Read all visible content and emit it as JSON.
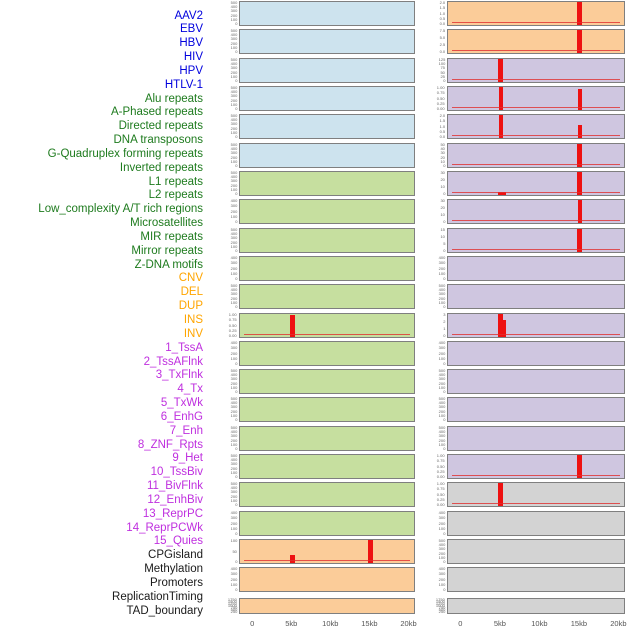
{
  "colors": {
    "spike_red": "#ee1111",
    "baseline_red": "#e03030",
    "label_groups": {
      "virus": "#0000dd",
      "repeat": "#1e7b1e",
      "sv": "#ffa500",
      "chromatin": "#bf2fdf",
      "other": "#1a1a1a"
    },
    "panel_groups": {
      "virus": "#cde3ee",
      "repeat": "#c6df9f",
      "sv": "#fbcc99",
      "chromatin": "#cfc6e0",
      "other": "#d3d3d3"
    }
  },
  "labels": [
    {
      "text": "AAV2",
      "group": "virus"
    },
    {
      "text": "EBV",
      "group": "virus"
    },
    {
      "text": "HBV",
      "group": "virus"
    },
    {
      "text": "HIV",
      "group": "virus"
    },
    {
      "text": "HPV",
      "group": "virus"
    },
    {
      "text": "HTLV-1",
      "group": "virus"
    },
    {
      "text": "Alu repeats",
      "group": "repeat"
    },
    {
      "text": "A-Phased repeats",
      "group": "repeat"
    },
    {
      "text": "Directed repeats",
      "group": "repeat"
    },
    {
      "text": "DNA transposons",
      "group": "repeat"
    },
    {
      "text": "G-Quadruplex forming repeats",
      "group": "repeat"
    },
    {
      "text": "Inverted repeats",
      "group": "repeat"
    },
    {
      "text": "L1 repeats",
      "group": "repeat"
    },
    {
      "text": "L2 repeats",
      "group": "repeat"
    },
    {
      "text": "Low_complexity A/T rich regions",
      "group": "repeat"
    },
    {
      "text": "Microsatellites",
      "group": "repeat"
    },
    {
      "text": "MIR repeats",
      "group": "repeat"
    },
    {
      "text": "Mirror repeats",
      "group": "repeat"
    },
    {
      "text": "Z-DNA motifs",
      "group": "repeat"
    },
    {
      "text": "CNV",
      "group": "sv"
    },
    {
      "text": "DEL",
      "group": "sv"
    },
    {
      "text": "DUP",
      "group": "sv"
    },
    {
      "text": "INS",
      "group": "sv"
    },
    {
      "text": "INV",
      "group": "sv"
    },
    {
      "text": "1_TssA",
      "group": "chromatin"
    },
    {
      "text": "2_TssAFlnk",
      "group": "chromatin"
    },
    {
      "text": "3_TxFlnk",
      "group": "chromatin"
    },
    {
      "text": "4_Tx",
      "group": "chromatin"
    },
    {
      "text": "5_TxWk",
      "group": "chromatin"
    },
    {
      "text": "6_EnhG",
      "group": "chromatin"
    },
    {
      "text": "7_Enh",
      "group": "chromatin"
    },
    {
      "text": "8_ZNF_Rpts",
      "group": "chromatin"
    },
    {
      "text": "9_Het",
      "group": "chromatin"
    },
    {
      "text": "10_TssBiv",
      "group": "chromatin"
    },
    {
      "text": "11_BivFlnk",
      "group": "chromatin"
    },
    {
      "text": "12_EnhBiv",
      "group": "chromatin"
    },
    {
      "text": "13_ReprPC",
      "group": "chromatin"
    },
    {
      "text": "14_ReprPCWk",
      "group": "chromatin"
    },
    {
      "text": "15_Quies",
      "group": "chromatin"
    },
    {
      "text": "CPGisland",
      "group": "other"
    },
    {
      "text": "Methylation",
      "group": "other"
    },
    {
      "text": "Promoters",
      "group": "other"
    },
    {
      "text": "ReplicationTiming",
      "group": "other"
    },
    {
      "text": "TAD_boundary",
      "group": "other"
    }
  ],
  "x_axis": {
    "ticks": [
      "0",
      "5kb",
      "10kb",
      "15kb",
      "20kb"
    ],
    "range_kb": [
      0,
      20
    ]
  },
  "chart_data": {
    "type": "area",
    "layout": "44 mini signal panels arranged 22 rows x 2 columns, shared x-axis 0-20kb, red spikes mark signal peaks",
    "panels": [
      {
        "name": "AAV2",
        "col": "left",
        "row": 1,
        "group": "virus",
        "yticks": [
          "500",
          "400",
          "300",
          "200",
          "100",
          "0"
        ],
        "spikes": [],
        "baseline": false
      },
      {
        "name": "EBV",
        "col": "left",
        "row": 2,
        "group": "virus",
        "yticks": [
          "500",
          "400",
          "300",
          "200",
          "100",
          "0"
        ],
        "spikes": [],
        "baseline": false
      },
      {
        "name": "HBV",
        "col": "left",
        "row": 3,
        "group": "virus",
        "yticks": [
          "500",
          "400",
          "300",
          "200",
          "100",
          "0"
        ],
        "spikes": [],
        "baseline": false
      },
      {
        "name": "HIV",
        "col": "left",
        "row": 4,
        "group": "virus",
        "yticks": [
          "500",
          "400",
          "300",
          "200",
          "100",
          "0"
        ],
        "spikes": [],
        "baseline": false
      },
      {
        "name": "HPV",
        "col": "left",
        "row": 5,
        "group": "virus",
        "yticks": [
          "500",
          "400",
          "300",
          "200",
          "100",
          "0"
        ],
        "spikes": [],
        "baseline": false
      },
      {
        "name": "HTLV-1",
        "col": "left",
        "row": 6,
        "group": "virus",
        "yticks": [
          "500",
          "400",
          "300",
          "200",
          "100",
          "0"
        ],
        "spikes": [],
        "baseline": false
      },
      {
        "name": "Alu repeats",
        "col": "left",
        "row": 7,
        "group": "repeat",
        "yticks": [
          "500",
          "400",
          "300",
          "200",
          "100",
          "0"
        ],
        "spikes": [],
        "baseline": false
      },
      {
        "name": "A-Phased repeats",
        "col": "left",
        "row": 8,
        "group": "repeat",
        "yticks": [
          "400",
          "300",
          "200",
          "100",
          "0"
        ],
        "spikes": [],
        "baseline": false
      },
      {
        "name": "Directed repeats",
        "col": "left",
        "row": 9,
        "group": "repeat",
        "yticks": [
          "500",
          "400",
          "300",
          "200",
          "100",
          "0"
        ],
        "spikes": [],
        "baseline": false
      },
      {
        "name": "DNA transposons",
        "col": "left",
        "row": 10,
        "group": "repeat",
        "yticks": [
          "400",
          "300",
          "200",
          "100",
          "0"
        ],
        "spikes": [],
        "baseline": false
      },
      {
        "name": "G-Quadruplex forming repeats",
        "col": "left",
        "row": 11,
        "group": "repeat",
        "yticks": [
          "500",
          "400",
          "300",
          "200",
          "100",
          "0"
        ],
        "spikes": [],
        "baseline": false
      },
      {
        "name": "Inverted repeats",
        "col": "left",
        "row": 12,
        "group": "repeat",
        "yticks": [
          "1.00",
          "0.75",
          "0.50",
          "0.25",
          "0.00"
        ],
        "spikes": [
          {
            "kb": 5,
            "h": 0.95,
            "w": 5
          }
        ],
        "baseline": true
      },
      {
        "name": "L1 repeats",
        "col": "left",
        "row": 13,
        "group": "repeat",
        "yticks": [
          "400",
          "300",
          "200",
          "100",
          "0"
        ],
        "spikes": [],
        "baseline": false
      },
      {
        "name": "L2 repeats",
        "col": "left",
        "row": 14,
        "group": "repeat",
        "yticks": [
          "500",
          "400",
          "300",
          "200",
          "100",
          "0"
        ],
        "spikes": [],
        "baseline": false
      },
      {
        "name": "Low_complexity A/T rich regions",
        "col": "left",
        "row": 15,
        "group": "repeat",
        "yticks": [
          "500",
          "400",
          "300",
          "200",
          "100",
          "0"
        ],
        "spikes": [],
        "baseline": false
      },
      {
        "name": "Microsatellites",
        "col": "left",
        "row": 16,
        "group": "repeat",
        "yticks": [
          "500",
          "400",
          "300",
          "200",
          "100",
          "0"
        ],
        "spikes": [],
        "baseline": false
      },
      {
        "name": "MIR repeats",
        "col": "left",
        "row": 17,
        "group": "repeat",
        "yticks": [
          "500",
          "400",
          "300",
          "200",
          "100",
          "0"
        ],
        "spikes": [],
        "baseline": false
      },
      {
        "name": "Mirror repeats",
        "col": "left",
        "row": 18,
        "group": "repeat",
        "yticks": [
          "500",
          "400",
          "300",
          "200",
          "100",
          "0"
        ],
        "spikes": [],
        "baseline": false
      },
      {
        "name": "Z-DNA motifs",
        "col": "left",
        "row": 19,
        "group": "repeat",
        "yticks": [
          "400",
          "300",
          "200",
          "100",
          "0"
        ],
        "spikes": [],
        "baseline": false
      },
      {
        "name": "CNV",
        "col": "left",
        "row": 20,
        "group": "sv",
        "yticks": [
          "100",
          "50",
          "0"
        ],
        "spikes": [
          {
            "kb": 5,
            "h": 0.33,
            "w": 5
          },
          {
            "kb": 15,
            "h": 1.0,
            "w": 5
          }
        ],
        "baseline": true
      },
      {
        "name": "DEL",
        "col": "left",
        "row": 21,
        "group": "sv",
        "yticks": [
          "400",
          "300",
          "200",
          "100",
          "0"
        ],
        "spikes": [],
        "baseline": false
      },
      {
        "name": "DUP",
        "col": "left",
        "row": 22,
        "group": "sv",
        "yticks": [
          "1750",
          "1500",
          "1250",
          "1000",
          "750",
          "500",
          "250"
        ],
        "spikes": [],
        "baseline": false
      },
      {
        "name": "INS",
        "col": "right",
        "row": 1,
        "group": "sv",
        "yticks": [
          "2.0",
          "1.5",
          "1.0",
          "0.5",
          "0.0"
        ],
        "spikes": [
          {
            "kb": 15,
            "h": 1.0,
            "w": 5
          }
        ],
        "baseline": true
      },
      {
        "name": "INV",
        "col": "right",
        "row": 2,
        "group": "sv",
        "yticks": [
          "7.5",
          "5.0",
          "2.5",
          "0.0"
        ],
        "spikes": [
          {
            "kb": 15,
            "h": 1.0,
            "w": 5
          }
        ],
        "baseline": true
      },
      {
        "name": "1_TssA",
        "col": "right",
        "row": 3,
        "group": "chromatin",
        "yticks": [
          "125",
          "100",
          "75",
          "50",
          "25",
          "0"
        ],
        "spikes": [
          {
            "kb": 5,
            "h": 1.0,
            "w": 5
          }
        ],
        "baseline": true
      },
      {
        "name": "2_TssAFlnk",
        "col": "right",
        "row": 4,
        "group": "chromatin",
        "yticks": [
          "1.00",
          "0.75",
          "0.50",
          "0.25",
          "0.00"
        ],
        "spikes": [
          {
            "kb": 5,
            "h": 1.0,
            "w": 4
          },
          {
            "kb": 15,
            "h": 0.93,
            "w": 4
          }
        ],
        "baseline": true
      },
      {
        "name": "3_TxFlnk",
        "col": "right",
        "row": 5,
        "group": "chromatin",
        "yticks": [
          "2.0",
          "1.5",
          "1.0",
          "0.5",
          "0.0"
        ],
        "spikes": [
          {
            "kb": 5,
            "h": 1.0,
            "w": 4
          },
          {
            "kb": 15,
            "h": 0.55,
            "w": 4
          }
        ],
        "baseline": true
      },
      {
        "name": "4_Tx",
        "col": "right",
        "row": 6,
        "group": "chromatin",
        "yticks": [
          "50",
          "40",
          "30",
          "20",
          "10",
          "0"
        ],
        "spikes": [
          {
            "kb": 15,
            "h": 1.0,
            "w": 5
          }
        ],
        "baseline": true
      },
      {
        "name": "5_TxWk",
        "col": "right",
        "row": 7,
        "group": "chromatin",
        "yticks": [
          "30",
          "20",
          "10",
          "0"
        ],
        "spikes": [
          {
            "kb": 5.2,
            "h": 0.12,
            "w": 8
          },
          {
            "kb": 15,
            "h": 1.0,
            "w": 5
          }
        ],
        "baseline": true
      },
      {
        "name": "6_EnhG",
        "col": "right",
        "row": 8,
        "group": "chromatin",
        "yticks": [
          "30",
          "20",
          "10",
          "0"
        ],
        "spikes": [
          {
            "kb": 15,
            "h": 1.0,
            "w": 4
          }
        ],
        "baseline": true
      },
      {
        "name": "7_Enh",
        "col": "right",
        "row": 9,
        "group": "chromatin",
        "yticks": [
          "15",
          "10",
          "5",
          "0"
        ],
        "spikes": [
          {
            "kb": 15,
            "h": 1.0,
            "w": 5
          }
        ],
        "baseline": true
      },
      {
        "name": "8_ZNF_Rpts",
        "col": "right",
        "row": 10,
        "group": "chromatin",
        "yticks": [
          "400",
          "300",
          "200",
          "100",
          "0"
        ],
        "spikes": [],
        "baseline": false
      },
      {
        "name": "9_Het",
        "col": "right",
        "row": 11,
        "group": "chromatin",
        "yticks": [
          "500",
          "400",
          "300",
          "200",
          "100",
          "0"
        ],
        "spikes": [],
        "baseline": false
      },
      {
        "name": "10_TssBiv",
        "col": "right",
        "row": 12,
        "group": "chromatin",
        "yticks": [
          "3",
          "2",
          "1",
          "0"
        ],
        "spikes": [
          {
            "kb": 5,
            "h": 1.0,
            "w": 5
          },
          {
            "kb": 5.45,
            "h": 0.72,
            "w": 3
          }
        ],
        "baseline": true
      },
      {
        "name": "11_BivFlnk",
        "col": "right",
        "row": 13,
        "group": "chromatin",
        "yticks": [
          "400",
          "300",
          "200",
          "100",
          "0"
        ],
        "spikes": [],
        "baseline": false
      },
      {
        "name": "12_EnhBiv",
        "col": "right",
        "row": 14,
        "group": "chromatin",
        "yticks": [
          "500",
          "400",
          "300",
          "200",
          "100",
          "0"
        ],
        "spikes": [],
        "baseline": false
      },
      {
        "name": "13_ReprPC",
        "col": "right",
        "row": 15,
        "group": "chromatin",
        "yticks": [
          "500",
          "400",
          "300",
          "200",
          "100",
          "0"
        ],
        "spikes": [],
        "baseline": false
      },
      {
        "name": "14_ReprPCWk",
        "col": "right",
        "row": 16,
        "group": "chromatin",
        "yticks": [
          "500",
          "400",
          "300",
          "200",
          "100",
          "0"
        ],
        "spikes": [],
        "baseline": false
      },
      {
        "name": "15_Quies",
        "col": "right",
        "row": 17,
        "group": "chromatin",
        "yticks": [
          "1.00",
          "0.75",
          "0.50",
          "0.25",
          "0.00"
        ],
        "spikes": [
          {
            "kb": 15,
            "h": 1.0,
            "w": 5
          }
        ],
        "baseline": true
      },
      {
        "name": "CPGisland",
        "col": "right",
        "row": 18,
        "group": "other",
        "yticks": [
          "1.00",
          "0.75",
          "0.50",
          "0.25",
          "0.00"
        ],
        "spikes": [
          {
            "kb": 5,
            "h": 1.0,
            "w": 5
          }
        ],
        "baseline": true
      },
      {
        "name": "Methylation",
        "col": "right",
        "row": 19,
        "group": "other",
        "yticks": [
          "400",
          "300",
          "200",
          "100",
          "0"
        ],
        "spikes": [],
        "baseline": false
      },
      {
        "name": "Promoters",
        "col": "right",
        "row": 20,
        "group": "other",
        "yticks": [
          "500",
          "400",
          "300",
          "200",
          "100",
          "0"
        ],
        "spikes": [],
        "baseline": false
      },
      {
        "name": "ReplicationTiming",
        "col": "right",
        "row": 21,
        "group": "other",
        "yticks": [
          "400",
          "300",
          "200",
          "100",
          "0"
        ],
        "spikes": [],
        "baseline": false
      },
      {
        "name": "TAD_boundary",
        "col": "right",
        "row": 22,
        "group": "other",
        "yticks": [
          "1750",
          "1500",
          "1250",
          "1000",
          "750",
          "500",
          "250"
        ],
        "spikes": [],
        "baseline": false
      }
    ]
  }
}
